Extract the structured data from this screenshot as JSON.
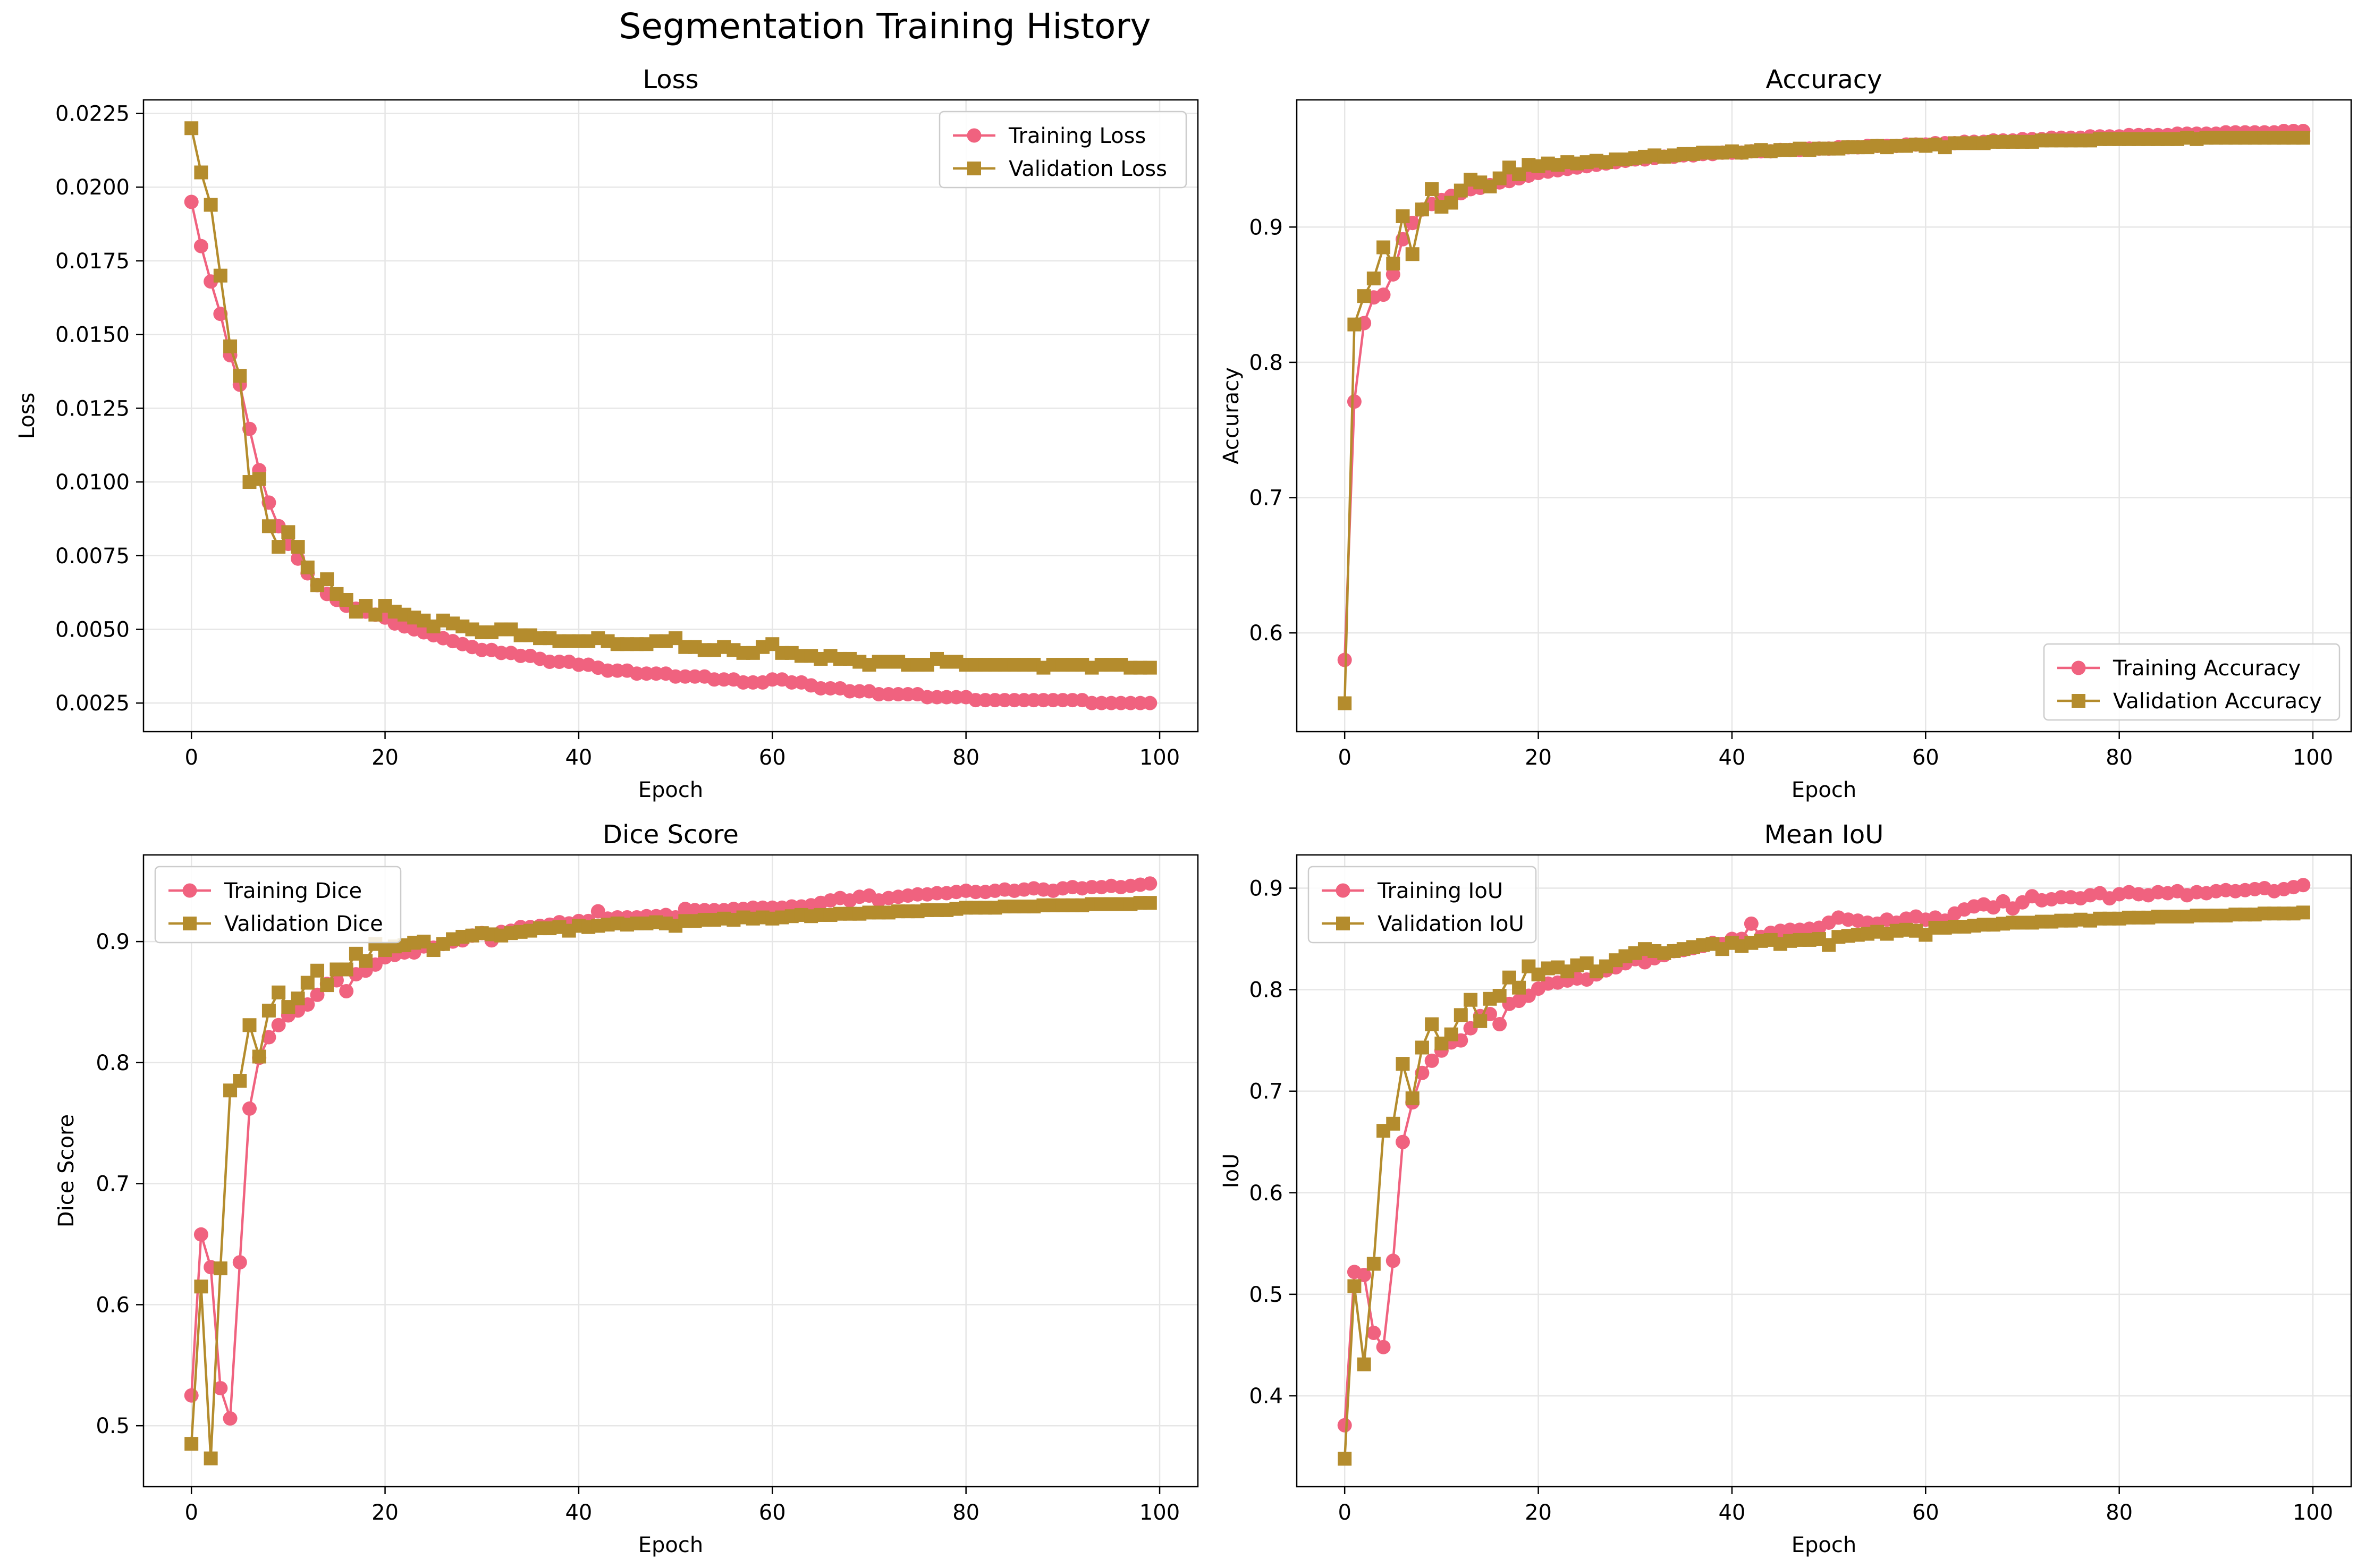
{
  "figure_title": "Segmentation Training History",
  "colors": {
    "training": "#f0627f",
    "validation": "#b48c2d",
    "grid": "#e6e6e6"
  },
  "chart_data": [
    {
      "id": "loss",
      "type": "line",
      "title": "Loss",
      "xlabel": "Epoch",
      "ylabel": "Loss",
      "xlim": [
        -4.95,
        103.95
      ],
      "ylim": [
        0.00153,
        0.02296
      ],
      "xticks": [
        0,
        20,
        40,
        60,
        80,
        100
      ],
      "yticks": [
        0.0025,
        0.005,
        0.0075,
        0.01,
        0.0125,
        0.015,
        0.0175,
        0.02,
        0.0225
      ],
      "ytick_labels": [
        "0.0025",
        "0.0050",
        "0.0075",
        "0.0100",
        "0.0125",
        "0.0150",
        "0.0175",
        "0.0200",
        "0.0225"
      ],
      "grid": true,
      "legend": "upper right",
      "series": [
        {
          "name": "Training Loss",
          "marker": "circle",
          "values": [
            0.0195,
            0.018,
            0.0168,
            0.0157,
            0.0143,
            0.0133,
            0.0118,
            0.0104,
            0.0093,
            0.0085,
            0.0079,
            0.0074,
            0.0069,
            0.0065,
            0.0062,
            0.006,
            0.0058,
            0.0057,
            0.0056,
            0.0055,
            0.0054,
            0.0052,
            0.0051,
            0.005,
            0.0049,
            0.0048,
            0.0047,
            0.0046,
            0.0045,
            0.0044,
            0.0043,
            0.0043,
            0.0042,
            0.0042,
            0.0041,
            0.0041,
            0.004,
            0.0039,
            0.0039,
            0.0039,
            0.0038,
            0.0038,
            0.0037,
            0.0036,
            0.0036,
            0.0036,
            0.0035,
            0.0035,
            0.0035,
            0.0035,
            0.0034,
            0.0034,
            0.0034,
            0.0034,
            0.0033,
            0.0033,
            0.0033,
            0.0032,
            0.0032,
            0.0032,
            0.0033,
            0.0033,
            0.0032,
            0.0032,
            0.0031,
            0.003,
            0.003,
            0.003,
            0.0029,
            0.0029,
            0.0029,
            0.0028,
            0.0028,
            0.0028,
            0.0028,
            0.0028,
            0.0027,
            0.0027,
            0.0027,
            0.0027,
            0.0027,
            0.0026,
            0.0026,
            0.0026,
            0.0026,
            0.0026,
            0.0026,
            0.0026,
            0.0026,
            0.0026,
            0.0026,
            0.0026,
            0.0026,
            0.0025,
            0.0025,
            0.0025,
            0.0025,
            0.0025,
            0.0025,
            0.0025
          ]
        },
        {
          "name": "Validation Loss",
          "marker": "square",
          "values": [
            0.022,
            0.0205,
            0.0194,
            0.017,
            0.0146,
            0.0136,
            0.01,
            0.0101,
            0.0085,
            0.0078,
            0.0083,
            0.0078,
            0.0071,
            0.0065,
            0.0067,
            0.0062,
            0.006,
            0.0056,
            0.0058,
            0.0055,
            0.0058,
            0.0056,
            0.0055,
            0.0054,
            0.0053,
            0.0051,
            0.0053,
            0.0052,
            0.0051,
            0.005,
            0.0049,
            0.0049,
            0.005,
            0.005,
            0.0048,
            0.0048,
            0.0047,
            0.0047,
            0.0046,
            0.0046,
            0.0046,
            0.0046,
            0.0047,
            0.0046,
            0.0045,
            0.0045,
            0.0045,
            0.0045,
            0.0046,
            0.0046,
            0.0047,
            0.0044,
            0.0044,
            0.0043,
            0.0043,
            0.0044,
            0.0043,
            0.0042,
            0.0042,
            0.0044,
            0.0045,
            0.0042,
            0.0042,
            0.0041,
            0.0041,
            0.004,
            0.0041,
            0.004,
            0.004,
            0.0039,
            0.0038,
            0.0039,
            0.0039,
            0.0039,
            0.0038,
            0.0038,
            0.0038,
            0.004,
            0.0039,
            0.0039,
            0.0038,
            0.0038,
            0.0038,
            0.0038,
            0.0038,
            0.0038,
            0.0038,
            0.0038,
            0.0037,
            0.0038,
            0.0038,
            0.0038,
            0.0038,
            0.0037,
            0.0038,
            0.0038,
            0.0038,
            0.0037,
            0.0037,
            0.0037
          ]
        }
      ]
    },
    {
      "id": "accuracy",
      "type": "line",
      "title": "Accuracy",
      "xlabel": "Epoch",
      "ylabel": "Accuracy",
      "xlim": [
        -4.95,
        103.95
      ],
      "ylim": [
        0.527,
        0.994
      ],
      "xticks": [
        0,
        20,
        40,
        60,
        80,
        100
      ],
      "yticks": [
        0.6,
        0.7,
        0.8,
        0.9
      ],
      "ytick_labels": [
        "0.6",
        "0.7",
        "0.8",
        "0.9"
      ],
      "grid": true,
      "legend": "lower right",
      "series": [
        {
          "name": "Training Accuracy",
          "marker": "circle",
          "values": [
            0.58,
            0.771,
            0.829,
            0.848,
            0.85,
            0.865,
            0.891,
            0.903,
            0.913,
            0.917,
            0.92,
            0.923,
            0.925,
            0.928,
            0.929,
            0.931,
            0.933,
            0.934,
            0.936,
            0.938,
            0.94,
            0.941,
            0.942,
            0.943,
            0.944,
            0.945,
            0.946,
            0.947,
            0.948,
            0.949,
            0.95,
            0.95,
            0.951,
            0.952,
            0.952,
            0.953,
            0.953,
            0.954,
            0.954,
            0.955,
            0.955,
            0.955,
            0.956,
            0.956,
            0.956,
            0.957,
            0.957,
            0.957,
            0.958,
            0.958,
            0.958,
            0.959,
            0.959,
            0.959,
            0.96,
            0.96,
            0.96,
            0.96,
            0.961,
            0.961,
            0.961,
            0.962,
            0.962,
            0.962,
            0.963,
            0.963,
            0.963,
            0.964,
            0.964,
            0.964,
            0.965,
            0.965,
            0.965,
            0.966,
            0.966,
            0.966,
            0.966,
            0.967,
            0.967,
            0.967,
            0.967,
            0.968,
            0.968,
            0.968,
            0.968,
            0.968,
            0.969,
            0.969,
            0.969,
            0.969,
            0.969,
            0.97,
            0.97,
            0.97,
            0.97,
            0.97,
            0.97,
            0.971,
            0.971,
            0.971
          ]
        },
        {
          "name": "Validation Accuracy",
          "marker": "square",
          "values": [
            0.548,
            0.828,
            0.849,
            0.862,
            0.885,
            0.873,
            0.908,
            0.88,
            0.913,
            0.928,
            0.915,
            0.918,
            0.927,
            0.935,
            0.933,
            0.93,
            0.936,
            0.944,
            0.939,
            0.946,
            0.945,
            0.947,
            0.946,
            0.948,
            0.947,
            0.948,
            0.949,
            0.948,
            0.95,
            0.95,
            0.951,
            0.952,
            0.953,
            0.952,
            0.953,
            0.954,
            0.954,
            0.955,
            0.955,
            0.955,
            0.956,
            0.955,
            0.956,
            0.957,
            0.956,
            0.957,
            0.957,
            0.958,
            0.957,
            0.958,
            0.958,
            0.958,
            0.959,
            0.959,
            0.959,
            0.96,
            0.959,
            0.96,
            0.96,
            0.961,
            0.96,
            0.961,
            0.959,
            0.962,
            0.962,
            0.962,
            0.962,
            0.963,
            0.963,
            0.963,
            0.963,
            0.963,
            0.964,
            0.964,
            0.964,
            0.964,
            0.964,
            0.964,
            0.965,
            0.965,
            0.965,
            0.965,
            0.965,
            0.965,
            0.965,
            0.965,
            0.965,
            0.966,
            0.965,
            0.966,
            0.966,
            0.966,
            0.966,
            0.966,
            0.966,
            0.966,
            0.966,
            0.966,
            0.966,
            0.966
          ]
        }
      ]
    },
    {
      "id": "dice",
      "type": "line",
      "title": "Dice Score",
      "xlabel": "Epoch",
      "ylabel": "Dice Score",
      "xlim": [
        -4.95,
        103.95
      ],
      "ylim": [
        0.4496,
        0.9716
      ],
      "xticks": [
        0,
        20,
        40,
        60,
        80,
        100
      ],
      "yticks": [
        0.5,
        0.6,
        0.7,
        0.8,
        0.9
      ],
      "ytick_labels": [
        "0.5",
        "0.6",
        "0.7",
        "0.8",
        "0.9"
      ],
      "grid": true,
      "legend": "upper left",
      "series": [
        {
          "name": "Training Dice",
          "marker": "circle",
          "values": [
            0.525,
            0.658,
            0.631,
            0.531,
            0.506,
            0.635,
            0.762,
            0.804,
            0.821,
            0.831,
            0.839,
            0.843,
            0.848,
            0.856,
            0.865,
            0.868,
            0.859,
            0.873,
            0.876,
            0.881,
            0.887,
            0.889,
            0.891,
            0.891,
            0.896,
            0.895,
            0.898,
            0.9,
            0.901,
            0.905,
            0.907,
            0.901,
            0.908,
            0.909,
            0.912,
            0.912,
            0.913,
            0.914,
            0.916,
            0.915,
            0.917,
            0.917,
            0.925,
            0.919,
            0.92,
            0.92,
            0.92,
            0.921,
            0.921,
            0.922,
            0.92,
            0.927,
            0.926,
            0.926,
            0.926,
            0.926,
            0.927,
            0.927,
            0.928,
            0.928,
            0.928,
            0.928,
            0.929,
            0.929,
            0.93,
            0.932,
            0.934,
            0.936,
            0.934,
            0.937,
            0.938,
            0.934,
            0.936,
            0.937,
            0.938,
            0.939,
            0.939,
            0.94,
            0.94,
            0.941,
            0.942,
            0.941,
            0.941,
            0.942,
            0.943,
            0.942,
            0.943,
            0.944,
            0.943,
            0.942,
            0.944,
            0.945,
            0.944,
            0.945,
            0.945,
            0.946,
            0.945,
            0.946,
            0.947,
            0.948
          ]
        },
        {
          "name": "Validation Dice",
          "marker": "square",
          "values": [
            0.485,
            0.615,
            0.473,
            0.63,
            0.777,
            0.785,
            0.831,
            0.805,
            0.843,
            0.858,
            0.846,
            0.853,
            0.866,
            0.876,
            0.864,
            0.877,
            0.877,
            0.89,
            0.884,
            0.898,
            0.893,
            0.896,
            0.897,
            0.899,
            0.9,
            0.893,
            0.898,
            0.902,
            0.904,
            0.905,
            0.907,
            0.906,
            0.905,
            0.907,
            0.908,
            0.909,
            0.911,
            0.911,
            0.912,
            0.909,
            0.913,
            0.912,
            0.913,
            0.914,
            0.915,
            0.914,
            0.915,
            0.915,
            0.916,
            0.915,
            0.913,
            0.917,
            0.917,
            0.918,
            0.918,
            0.919,
            0.918,
            0.92,
            0.919,
            0.92,
            0.919,
            0.92,
            0.921,
            0.922,
            0.921,
            0.922,
            0.922,
            0.923,
            0.923,
            0.923,
            0.924,
            0.924,
            0.924,
            0.925,
            0.925,
            0.925,
            0.926,
            0.926,
            0.926,
            0.927,
            0.928,
            0.928,
            0.928,
            0.928,
            0.929,
            0.929,
            0.929,
            0.929,
            0.93,
            0.93,
            0.93,
            0.93,
            0.93,
            0.931,
            0.931,
            0.931,
            0.931,
            0.931,
            0.932,
            0.932
          ]
        }
      ]
    },
    {
      "id": "iou",
      "type": "line",
      "title": "Mean IoU",
      "xlabel": "Epoch",
      "ylabel": "IoU",
      "xlim": [
        -4.95,
        103.95
      ],
      "ylim": [
        0.3105,
        0.9327
      ],
      "xticks": [
        0,
        20,
        40,
        60,
        80,
        100
      ],
      "yticks": [
        0.4,
        0.5,
        0.6,
        0.7,
        0.8,
        0.9
      ],
      "ytick_labels": [
        "0.4",
        "0.5",
        "0.6",
        "0.7",
        "0.8",
        "0.9"
      ],
      "grid": true,
      "legend": "upper left",
      "series": [
        {
          "name": "Training IoU",
          "marker": "circle",
          "values": [
            0.371,
            0.522,
            0.519,
            0.462,
            0.448,
            0.533,
            0.65,
            0.689,
            0.718,
            0.73,
            0.74,
            0.748,
            0.75,
            0.762,
            0.774,
            0.776,
            0.766,
            0.786,
            0.789,
            0.794,
            0.801,
            0.806,
            0.807,
            0.809,
            0.811,
            0.81,
            0.815,
            0.819,
            0.822,
            0.826,
            0.83,
            0.827,
            0.831,
            0.834,
            0.838,
            0.839,
            0.841,
            0.843,
            0.846,
            0.845,
            0.85,
            0.85,
            0.865,
            0.852,
            0.856,
            0.858,
            0.859,
            0.859,
            0.86,
            0.861,
            0.866,
            0.871,
            0.869,
            0.868,
            0.866,
            0.865,
            0.869,
            0.866,
            0.87,
            0.872,
            0.869,
            0.871,
            0.868,
            0.875,
            0.879,
            0.882,
            0.884,
            0.881,
            0.887,
            0.88,
            0.886,
            0.892,
            0.888,
            0.889,
            0.891,
            0.891,
            0.89,
            0.893,
            0.895,
            0.89,
            0.894,
            0.896,
            0.894,
            0.893,
            0.896,
            0.895,
            0.897,
            0.893,
            0.896,
            0.895,
            0.897,
            0.898,
            0.897,
            0.898,
            0.899,
            0.9,
            0.897,
            0.899,
            0.901,
            0.903
          ]
        },
        {
          "name": "Validation IoU",
          "marker": "square",
          "values": [
            0.338,
            0.508,
            0.431,
            0.53,
            0.661,
            0.668,
            0.727,
            0.693,
            0.743,
            0.766,
            0.747,
            0.756,
            0.775,
            0.79,
            0.769,
            0.791,
            0.794,
            0.812,
            0.802,
            0.823,
            0.815,
            0.821,
            0.822,
            0.818,
            0.824,
            0.826,
            0.818,
            0.823,
            0.829,
            0.833,
            0.836,
            0.84,
            0.838,
            0.836,
            0.838,
            0.84,
            0.842,
            0.844,
            0.845,
            0.84,
            0.846,
            0.843,
            0.846,
            0.848,
            0.849,
            0.845,
            0.848,
            0.849,
            0.849,
            0.85,
            0.844,
            0.852,
            0.853,
            0.854,
            0.855,
            0.857,
            0.855,
            0.858,
            0.859,
            0.858,
            0.854,
            0.861,
            0.861,
            0.862,
            0.862,
            0.863,
            0.864,
            0.864,
            0.865,
            0.866,
            0.866,
            0.866,
            0.867,
            0.867,
            0.868,
            0.868,
            0.869,
            0.868,
            0.87,
            0.87,
            0.87,
            0.871,
            0.871,
            0.871,
            0.872,
            0.872,
            0.872,
            0.872,
            0.873,
            0.873,
            0.873,
            0.873,
            0.874,
            0.874,
            0.874,
            0.875,
            0.875,
            0.875,
            0.875,
            0.876
          ]
        }
      ]
    }
  ]
}
